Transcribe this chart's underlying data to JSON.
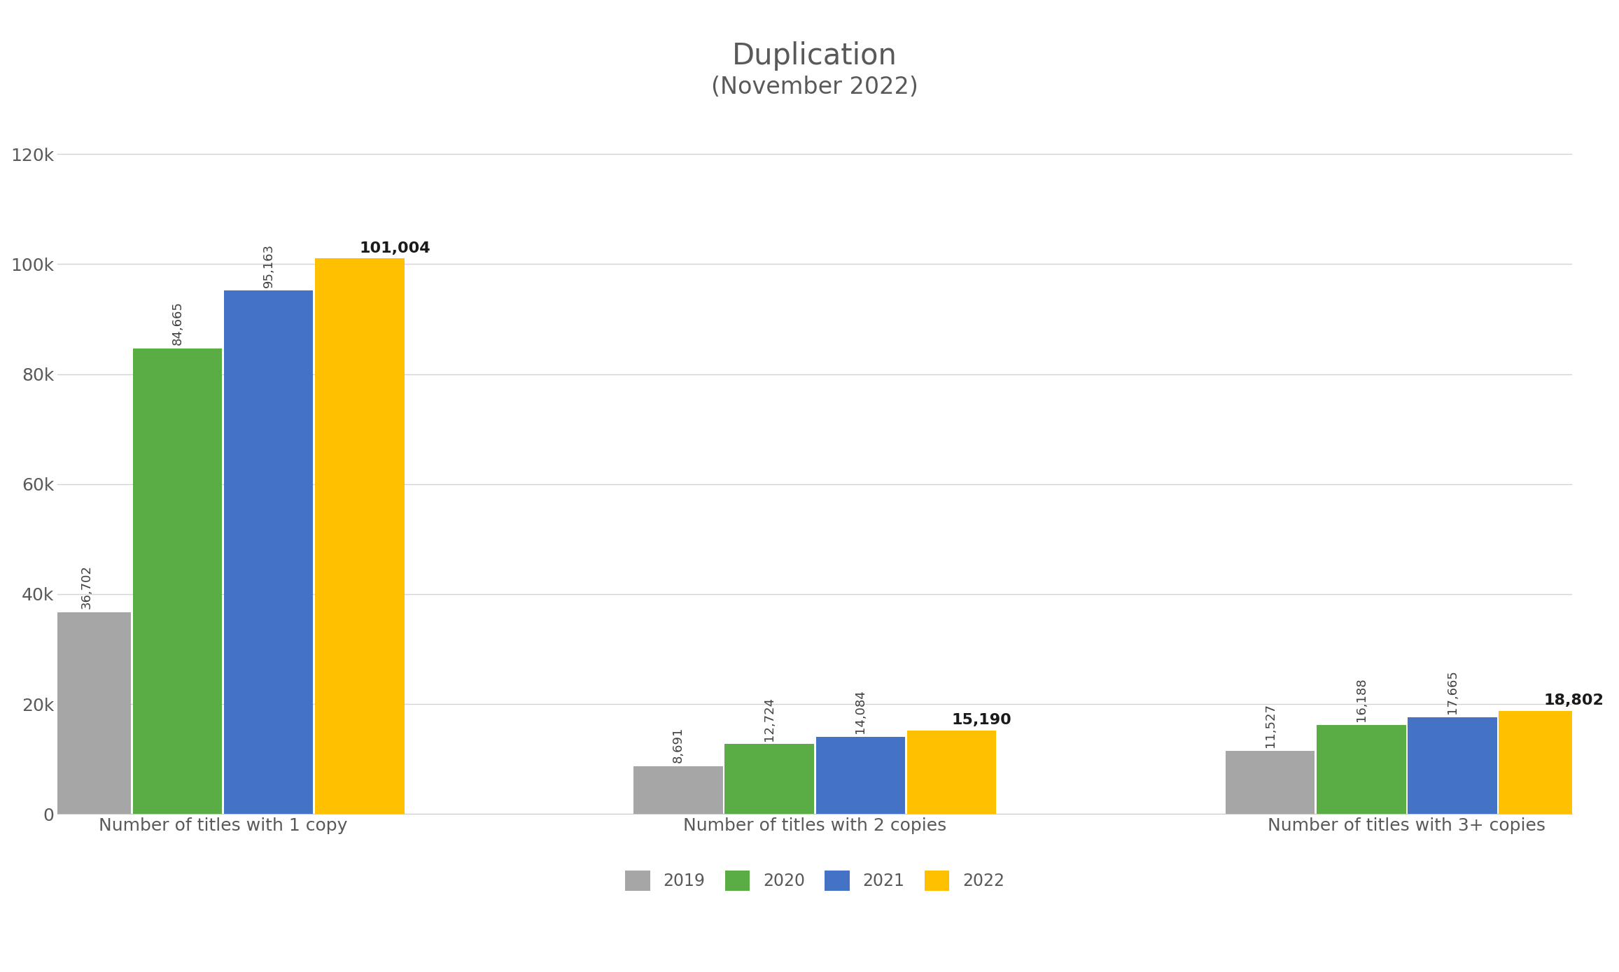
{
  "title": "Duplication",
  "subtitle": "(November 2022)",
  "categories": [
    "Number of titles with 1 copy",
    "Number of titles with 2 copies",
    "Number of titles with 3+ copies"
  ],
  "series": {
    "2019": [
      36702,
      8691,
      11527
    ],
    "2020": [
      84665,
      12724,
      16188
    ],
    "2021": [
      95163,
      14084,
      17665
    ],
    "2022": [
      101004,
      15190,
      18802
    ]
  },
  "bar_colors": {
    "2019": "#a6a6a6",
    "2020": "#5aac44",
    "2021": "#4472c4",
    "2022": "#ffc000"
  },
  "labels_bold_year": "2022",
  "ylim": [
    0,
    130000
  ],
  "yticks": [
    0,
    20000,
    40000,
    60000,
    80000,
    100000,
    120000
  ],
  "ytick_labels": [
    "0",
    "20k",
    "40k",
    "60k",
    "80k",
    "100k",
    "120k"
  ],
  "background_color": "#ffffff",
  "grid_color": "#d3d3d3",
  "title_fontsize": 30,
  "tick_fontsize": 18,
  "bar_label_fontsize": 13,
  "bar_label_bold_fontsize": 16,
  "legend_fontsize": 17,
  "axis_label_fontsize": 18,
  "text_color": "#595959"
}
